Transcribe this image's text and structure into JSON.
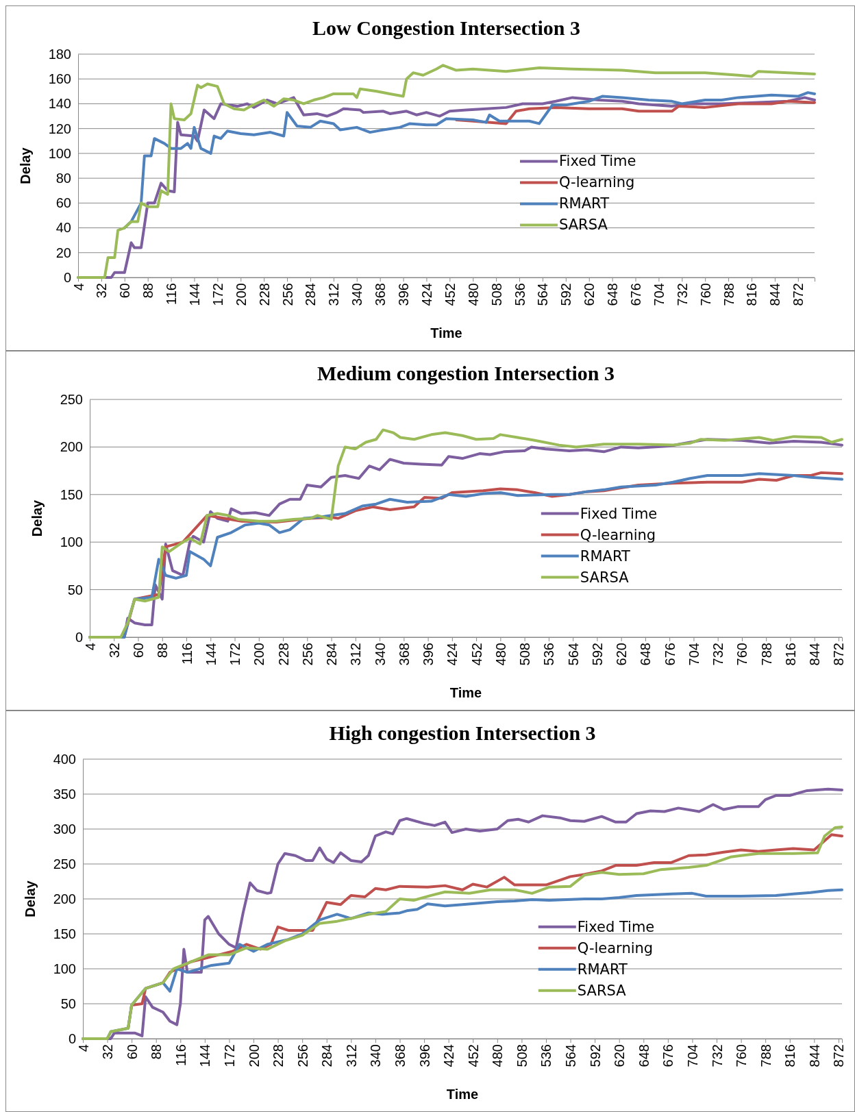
{
  "chart_data": [
    {
      "type": "line",
      "title": "Low Congestion Intersection 3",
      "xlabel": "Time",
      "ylabel": "Delay",
      "xlim": [
        4,
        892
      ],
      "ylim": [
        0,
        180
      ],
      "xticks": [
        4,
        32,
        60,
        88,
        116,
        144,
        172,
        200,
        228,
        256,
        284,
        312,
        340,
        368,
        396,
        424,
        452,
        480,
        508,
        536,
        564,
        592,
        620,
        648,
        676,
        704,
        732,
        760,
        788,
        816,
        844,
        872
      ],
      "yticks": [
        0,
        20,
        40,
        60,
        80,
        100,
        120,
        140,
        160,
        180
      ],
      "grid": "y",
      "legend": "right",
      "marker": "none",
      "line_style": "solid",
      "series": [
        {
          "name": "Fixed Time",
          "color": "#7d5fa0",
          "x": [
            4,
            44,
            48,
            60,
            68,
            72,
            80,
            88,
            96,
            104,
            112,
            120,
            124,
            128,
            144,
            148,
            156,
            168,
            176,
            196,
            208,
            216,
            232,
            244,
            256,
            264,
            276,
            292,
            304,
            316,
            324,
            344,
            348,
            372,
            380,
            400,
            412,
            424,
            440,
            452,
            472,
            496,
            520,
            540,
            564,
            580,
            600,
            632,
            660,
            680,
            700,
            720,
            740,
            780,
            820,
            860,
            880,
            892
          ],
          "values": [
            0,
            0,
            4,
            4,
            28,
            24,
            24,
            60,
            60,
            76,
            70,
            69,
            125,
            115,
            114,
            110,
            135,
            128,
            140,
            138,
            140,
            137,
            143,
            140,
            143,
            145,
            131,
            132,
            130,
            133,
            136,
            135,
            133,
            134,
            132,
            134,
            131,
            133,
            130,
            134,
            135,
            136,
            137,
            140,
            140,
            142,
            145,
            143,
            142,
            140,
            139,
            138,
            140,
            140,
            141,
            142,
            145,
            143
          ]
        },
        {
          "name": "Q-learning",
          "color": "#c0504d",
          "x": [
            460,
            480,
            520,
            532,
            548,
            580,
            620,
            660,
            680,
            720,
            728,
            760,
            800,
            840,
            860,
            892
          ],
          "values": [
            127,
            126,
            124,
            134,
            136,
            137,
            136,
            136,
            134,
            134,
            138,
            137,
            140,
            140,
            142,
            141
          ]
        },
        {
          "name": "RMART",
          "color": "#4f81bd",
          "x": [
            60,
            68,
            80,
            84,
            92,
            96,
            108,
            116,
            128,
            136,
            140,
            144,
            152,
            164,
            168,
            176,
            184,
            200,
            216,
            236,
            252,
            256,
            268,
            284,
            296,
            312,
            320,
            340,
            356,
            372,
            392,
            404,
            424,
            436,
            448,
            480,
            496,
            500,
            512,
            548,
            560,
            576,
            592,
            620,
            636,
            660,
            692,
            720,
            732,
            760,
            780,
            800,
            840,
            872,
            884,
            892
          ],
          "values": [
            40,
            45,
            60,
            98,
            98,
            112,
            108,
            104,
            104,
            108,
            104,
            121,
            104,
            100,
            114,
            112,
            118,
            116,
            115,
            117,
            114,
            133,
            122,
            121,
            126,
            124,
            119,
            121,
            117,
            119,
            121,
            124,
            123,
            123,
            128,
            127,
            125,
            131,
            126,
            126,
            124,
            139,
            139,
            142,
            146,
            145,
            143,
            142,
            140,
            143,
            143,
            145,
            147,
            146,
            149,
            148
          ]
        },
        {
          "name": "SARSA",
          "color": "#9bbb59",
          "x": [
            4,
            36,
            40,
            48,
            52,
            60,
            68,
            76,
            80,
            88,
            100,
            104,
            112,
            116,
            120,
            132,
            140,
            148,
            152,
            160,
            172,
            180,
            192,
            204,
            212,
            228,
            240,
            252,
            264,
            276,
            288,
            300,
            312,
            336,
            340,
            344,
            364,
            380,
            396,
            400,
            408,
            420,
            436,
            444,
            460,
            480,
            520,
            560,
            600,
            660,
            700,
            760,
            800,
            816,
            824,
            860,
            892
          ],
          "values": [
            0,
            0,
            16,
            16,
            38,
            40,
            45,
            45,
            60,
            57,
            57,
            70,
            67,
            140,
            128,
            127,
            132,
            155,
            153,
            156,
            154,
            140,
            136,
            135,
            138,
            143,
            138,
            144,
            143,
            140,
            143,
            145,
            148,
            148,
            145,
            152,
            150,
            148,
            146,
            160,
            165,
            163,
            168,
            171,
            167,
            168,
            166,
            169,
            168,
            167,
            165,
            165,
            163,
            162,
            166,
            165,
            164
          ]
        }
      ]
    },
    {
      "type": "line",
      "title": "Medium congestion Intersection 3",
      "xlabel": "Time",
      "ylabel": "Delay",
      "xlim": [
        4,
        876
      ],
      "ylim": [
        0,
        250
      ],
      "xticks": [
        4,
        32,
        60,
        88,
        116,
        144,
        172,
        200,
        228,
        256,
        284,
        312,
        340,
        368,
        396,
        424,
        452,
        480,
        508,
        536,
        564,
        592,
        620,
        648,
        676,
        704,
        732,
        760,
        788,
        816,
        844,
        872
      ],
      "yticks": [
        0,
        50,
        100,
        150,
        200,
        250
      ],
      "grid": "y",
      "legend": "right",
      "marker": "none",
      "line_style": "solid",
      "series": [
        {
          "name": "Fixed Time",
          "color": "#7d5fa0",
          "x": [
            4,
            44,
            48,
            56,
            68,
            76,
            80,
            88,
            92,
            100,
            112,
            120,
            124,
            136,
            144,
            152,
            164,
            168,
            180,
            196,
            212,
            224,
            236,
            248,
            256,
            272,
            284,
            300,
            316,
            328,
            340,
            352,
            368,
            388,
            412,
            420,
            436,
            456,
            468,
            484,
            508,
            516,
            532,
            560,
            580,
            600,
            620,
            640,
            676,
            700,
            720,
            760,
            792,
            820,
            852,
            876
          ],
          "values": [
            0,
            0,
            20,
            15,
            13,
            13,
            55,
            40,
            98,
            70,
            65,
            100,
            106,
            100,
            132,
            125,
            122,
            135,
            130,
            131,
            128,
            140,
            145,
            145,
            160,
            158,
            168,
            170,
            167,
            180,
            176,
            187,
            183,
            182,
            181,
            190,
            188,
            193,
            192,
            195,
            196,
            200,
            198,
            196,
            197,
            195,
            200,
            199,
            201,
            205,
            208,
            207,
            204,
            206,
            205,
            202
          ]
        },
        {
          "name": "Q-learning",
          "color": "#c0504d",
          "x": [
            4,
            44,
            56,
            84,
            92,
            112,
            140,
            180,
            220,
            260,
            284,
            292,
            312,
            332,
            352,
            380,
            392,
            412,
            424,
            440,
            460,
            480,
            500,
            520,
            540,
            560,
            580,
            600,
            620,
            640,
            680,
            720,
            760,
            780,
            800,
            820,
            840,
            852,
            876
          ],
          "values": [
            0,
            0,
            40,
            45,
            95,
            100,
            128,
            122,
            121,
            125,
            126,
            125,
            133,
            137,
            134,
            137,
            147,
            146,
            152,
            153,
            154,
            156,
            155,
            152,
            148,
            150,
            153,
            154,
            157,
            160,
            162,
            163,
            163,
            166,
            165,
            170,
            170,
            173,
            172
          ]
        },
        {
          "name": "RMART",
          "color": "#4f81bd",
          "x": [
            4,
            44,
            48,
            56,
            76,
            84,
            92,
            104,
            116,
            120,
            136,
            144,
            152,
            168,
            184,
            200,
            212,
            224,
            236,
            252,
            268,
            284,
            300,
            320,
            336,
            352,
            372,
            400,
            420,
            440,
            460,
            480,
            500,
            540,
            560,
            580,
            600,
            620,
            660,
            680,
            700,
            720,
            760,
            780,
            820,
            840,
            860,
            876
          ],
          "values": [
            0,
            0,
            15,
            40,
            42,
            82,
            65,
            62,
            65,
            90,
            82,
            75,
            105,
            110,
            118,
            120,
            118,
            110,
            113,
            125,
            126,
            128,
            130,
            138,
            140,
            145,
            142,
            143,
            150,
            148,
            151,
            152,
            149,
            150,
            150,
            153,
            155,
            158,
            160,
            163,
            167,
            170,
            170,
            172,
            170,
            168,
            167,
            166
          ]
        },
        {
          "name": "SARSA",
          "color": "#9bbb59",
          "x": [
            4,
            40,
            48,
            56,
            68,
            76,
            84,
            88,
            96,
            104,
            112,
            120,
            132,
            140,
            152,
            164,
            176,
            200,
            220,
            240,
            260,
            268,
            284,
            292,
            300,
            312,
            324,
            336,
            344,
            356,
            364,
            380,
            400,
            416,
            436,
            452,
            472,
            480,
            500,
            520,
            548,
            568,
            600,
            640,
            680,
            700,
            712,
            740,
            780,
            796,
            820,
            852,
            864,
            876
          ],
          "values": [
            0,
            0,
            15,
            40,
            38,
            40,
            42,
            95,
            90,
            95,
            100,
            104,
            98,
            128,
            130,
            128,
            124,
            122,
            122,
            124,
            125,
            128,
            124,
            180,
            200,
            198,
            205,
            208,
            218,
            215,
            210,
            208,
            213,
            215,
            212,
            208,
            209,
            213,
            210,
            207,
            202,
            200,
            203,
            203,
            202,
            204,
            208,
            207,
            210,
            207,
            211,
            210,
            205,
            208
          ]
        }
      ]
    },
    {
      "type": "line",
      "title": "High congestion Intersection 3",
      "xlabel": "Time",
      "ylabel": "Delay",
      "xlim": [
        4,
        876
      ],
      "ylim": [
        0,
        400
      ],
      "xticks": [
        4,
        32,
        60,
        88,
        116,
        144,
        172,
        200,
        228,
        256,
        284,
        312,
        340,
        368,
        396,
        424,
        452,
        480,
        508,
        536,
        564,
        592,
        620,
        648,
        676,
        704,
        732,
        760,
        788,
        816,
        844,
        872
      ],
      "yticks": [
        0,
        50,
        100,
        150,
        200,
        250,
        300,
        350,
        400
      ],
      "grid": "y",
      "legend": "right",
      "marker": "none",
      "line_style": "solid",
      "series": [
        {
          "name": "Fixed Time",
          "color": "#7d5fa0",
          "x": [
            4,
            36,
            40,
            64,
            72,
            76,
            84,
            96,
            104,
            112,
            116,
            120,
            124,
            140,
            144,
            148,
            160,
            172,
            180,
            188,
            196,
            204,
            216,
            220,
            228,
            236,
            248,
            260,
            268,
            276,
            284,
            292,
            300,
            312,
            324,
            332,
            340,
            352,
            360,
            368,
            376,
            396,
            408,
            420,
            428,
            444,
            460,
            480,
            492,
            504,
            516,
            532,
            552,
            564,
            580,
            600,
            616,
            628,
            640,
            656,
            672,
            688,
            712,
            728,
            740,
            756,
            780,
            788,
            800,
            816,
            836,
            860,
            876
          ],
          "values": [
            0,
            0,
            8,
            8,
            4,
            60,
            45,
            38,
            25,
            20,
            50,
            128,
            95,
            95,
            170,
            175,
            150,
            135,
            130,
            180,
            223,
            212,
            208,
            209,
            250,
            265,
            262,
            255,
            255,
            273,
            257,
            252,
            266,
            255,
            253,
            262,
            290,
            296,
            293,
            312,
            315,
            308,
            305,
            310,
            295,
            300,
            297,
            300,
            312,
            314,
            310,
            319,
            316,
            312,
            311,
            318,
            310,
            310,
            322,
            326,
            325,
            330,
            325,
            335,
            328,
            332,
            332,
            342,
            348,
            348,
            355,
            357,
            356
          ]
        },
        {
          "name": "Q-learning",
          "color": "#c0504d",
          "x": [
            56,
            60,
            72,
            76,
            96,
            104,
            112,
            128,
            144,
            160,
            176,
            192,
            208,
            220,
            228,
            240,
            268,
            276,
            284,
            300,
            312,
            328,
            340,
            352,
            368,
            400,
            420,
            440,
            452,
            468,
            488,
            500,
            536,
            564,
            580,
            600,
            616,
            640,
            660,
            680,
            700,
            720,
            740,
            760,
            780,
            800,
            820,
            844,
            864,
            876
          ],
          "values": [
            15,
            48,
            50,
            72,
            80,
            95,
            100,
            110,
            115,
            120,
            125,
            135,
            128,
            135,
            160,
            155,
            155,
            175,
            195,
            192,
            205,
            203,
            215,
            213,
            218,
            217,
            219,
            213,
            221,
            217,
            231,
            220,
            220,
            232,
            235,
            240,
            248,
            248,
            252,
            252,
            262,
            263,
            267,
            270,
            268,
            270,
            272,
            270,
            292,
            290
          ]
        },
        {
          "name": "RMART",
          "color": "#4f81bd",
          "x": [
            4,
            32,
            36,
            56,
            60,
            76,
            96,
            104,
            112,
            124,
            152,
            172,
            184,
            200,
            216,
            240,
            256,
            276,
            296,
            312,
            332,
            348,
            368,
            376,
            388,
            400,
            420,
            440,
            480,
            500,
            520,
            540,
            580,
            600,
            620,
            640,
            680,
            704,
            720,
            760,
            800,
            820,
            840,
            860,
            876
          ],
          "values": [
            0,
            0,
            10,
            15,
            48,
            72,
            80,
            68,
            100,
            95,
            105,
            108,
            135,
            125,
            135,
            142,
            150,
            170,
            178,
            172,
            180,
            178,
            180,
            183,
            185,
            193,
            190,
            192,
            196,
            197,
            199,
            198,
            200,
            200,
            202,
            205,
            207,
            208,
            204,
            204,
            205,
            207,
            209,
            212,
            213
          ]
        },
        {
          "name": "SARSA",
          "color": "#9bbb59",
          "x": [
            4,
            32,
            36,
            56,
            60,
            76,
            96,
            108,
            128,
            148,
            172,
            192,
            216,
            236,
            256,
            276,
            296,
            312,
            332,
            352,
            368,
            384,
            404,
            420,
            448,
            472,
            500,
            520,
            540,
            564,
            580,
            600,
            620,
            648,
            668,
            700,
            720,
            748,
            760,
            780,
            820,
            848,
            856,
            868,
            876
          ],
          "values": [
            0,
            0,
            10,
            15,
            48,
            72,
            80,
            100,
            110,
            120,
            120,
            130,
            128,
            140,
            148,
            165,
            168,
            172,
            178,
            182,
            200,
            198,
            205,
            210,
            208,
            213,
            213,
            208,
            217,
            218,
            234,
            238,
            235,
            236,
            242,
            245,
            248,
            260,
            262,
            265,
            265,
            266,
            290,
            302,
            303
          ]
        }
      ]
    }
  ]
}
